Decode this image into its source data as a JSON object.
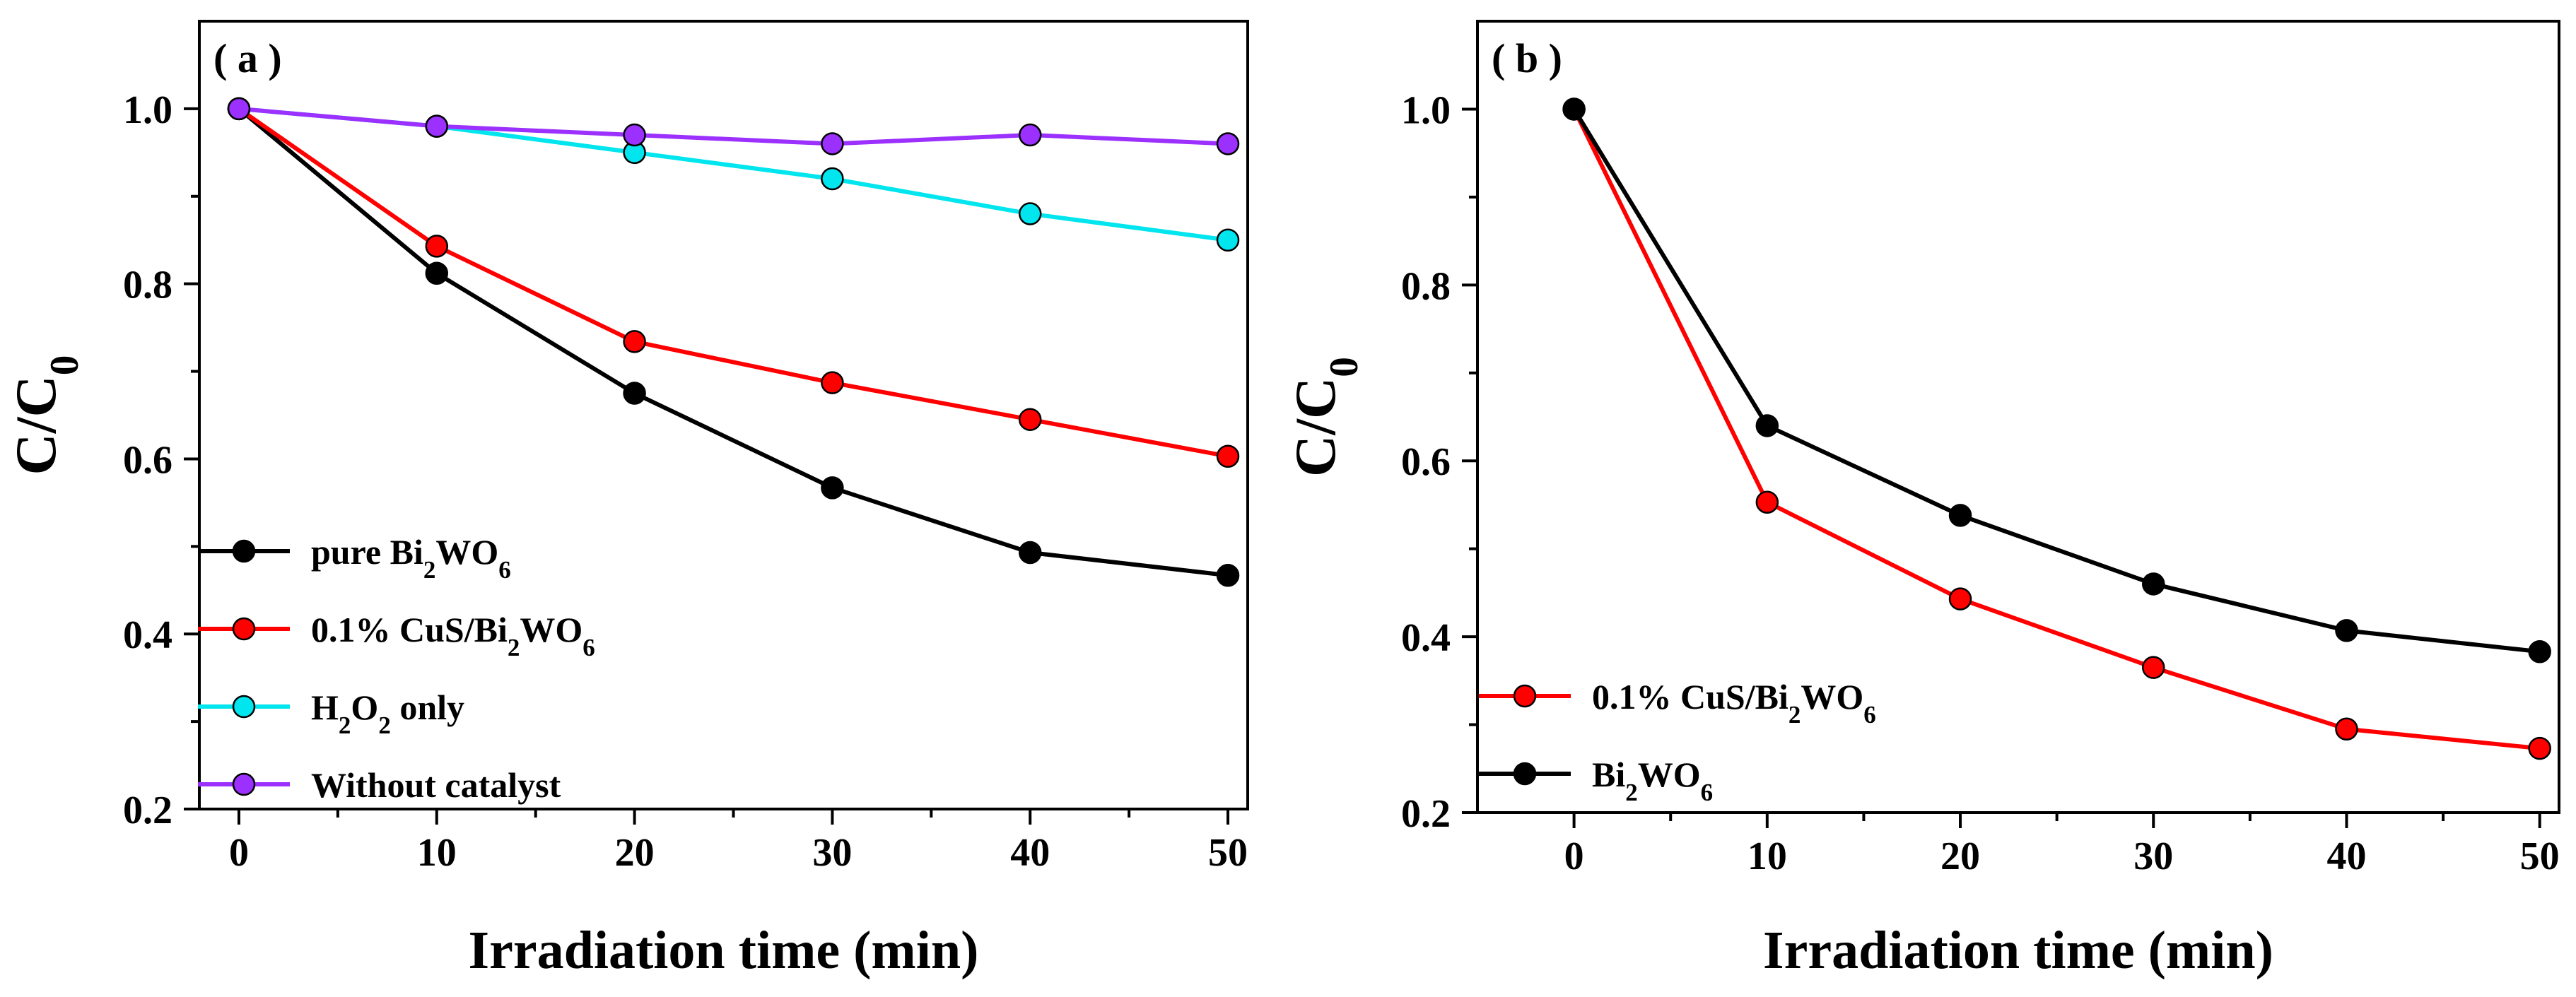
{
  "chart_data": [
    {
      "type": "line",
      "panel_label": "( a )",
      "xlabel": "Irradiation time (min)",
      "ylabel": "C/C0",
      "ylabel_parts": {
        "main": "C/C",
        "sub": "0"
      },
      "xlim": [
        -2,
        51
      ],
      "ylim": [
        0.2,
        1.1
      ],
      "xticks": [
        0,
        10,
        20,
        30,
        40,
        50
      ],
      "yticks": [
        0.2,
        0.4,
        0.6,
        0.8,
        1.0
      ],
      "ytick_labels": [
        "0.2",
        "0.4",
        "0.6",
        "0.8",
        "1.0"
      ],
      "x": [
        0,
        10,
        20,
        30,
        40,
        50
      ],
      "legend_location": "lower-left",
      "series": [
        {
          "name": "pure Bi2WO6",
          "name_parts": [
            [
              "pure Bi",
              ""
            ],
            [
              "2",
              "sub"
            ],
            [
              "WO",
              ""
            ],
            [
              "6",
              "sub"
            ]
          ],
          "color": "#000000",
          "values": [
            1.0,
            0.812,
            0.675,
            0.567,
            0.493,
            0.467
          ]
        },
        {
          "name": "0.1% CuS/Bi2WO6",
          "name_parts": [
            [
              "0.1% CuS/Bi",
              ""
            ],
            [
              "2",
              "sub"
            ],
            [
              "WO",
              ""
            ],
            [
              "6",
              "sub"
            ]
          ],
          "color": "#ff0000",
          "values": [
            1.0,
            0.843,
            0.734,
            0.687,
            0.645,
            0.603
          ]
        },
        {
          "name": "H2O2 only",
          "name_parts": [
            [
              "H",
              ""
            ],
            [
              "2",
              "sub"
            ],
            [
              "O",
              ""
            ],
            [
              "2",
              "sub"
            ],
            [
              " only",
              ""
            ]
          ],
          "color": "#00e5ee",
          "values": [
            1.0,
            0.98,
            0.95,
            0.92,
            0.88,
            0.85
          ]
        },
        {
          "name": "Without catalyst",
          "name_parts": [
            [
              "Without catalyst",
              ""
            ]
          ],
          "color": "#9b30ff",
          "values": [
            1.0,
            0.98,
            0.97,
            0.96,
            0.97,
            0.96
          ]
        }
      ]
    },
    {
      "type": "line",
      "panel_label": "( b )",
      "xlabel": "Irradiation time (min)",
      "ylabel": "C/C0",
      "ylabel_parts": {
        "main": "C/C",
        "sub": "0"
      },
      "xlim": [
        -5,
        51
      ],
      "ylim": [
        0.2,
        1.1
      ],
      "xticks": [
        0,
        10,
        20,
        30,
        40,
        50
      ],
      "yticks": [
        0.2,
        0.4,
        0.6,
        0.8,
        1.0
      ],
      "ytick_labels": [
        "0.2",
        "0.4",
        "0.6",
        "0.8",
        "1.0"
      ],
      "x": [
        0,
        10,
        20,
        30,
        40,
        50
      ],
      "legend_location": "lower-left",
      "series": [
        {
          "name": "0.1% CuS/Bi2WO6",
          "name_parts": [
            [
              "0.1% CuS/Bi",
              ""
            ],
            [
              "2",
              "sub"
            ],
            [
              "WO",
              ""
            ],
            [
              "6",
              "sub"
            ]
          ],
          "color": "#ff0000",
          "values": [
            1.0,
            0.553,
            0.443,
            0.365,
            0.295,
            0.273
          ]
        },
        {
          "name": "Bi2WO6",
          "name_parts": [
            [
              "Bi",
              ""
            ],
            [
              "2",
              "sub"
            ],
            [
              "WO",
              ""
            ],
            [
              "6",
              "sub"
            ]
          ],
          "color": "#000000",
          "values": [
            1.0,
            0.64,
            0.538,
            0.46,
            0.407,
            0.383
          ]
        }
      ]
    }
  ]
}
